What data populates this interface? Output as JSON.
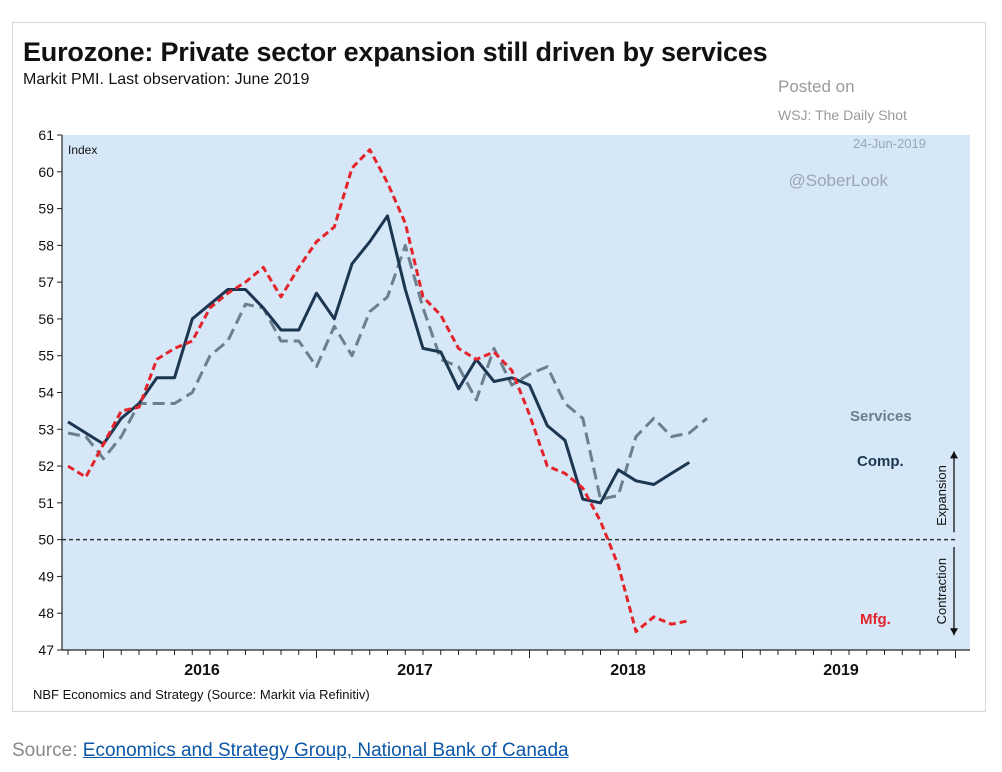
{
  "header_strip": {
    "visible": true
  },
  "chart_card": {
    "title": "Eurozone: Private sector expansion still driven by services",
    "subtitle": "Markit PMI. Last observation: June 2019",
    "watermark": {
      "posted_on": "Posted on",
      "source": "WSJ: The Daily Shot",
      "date": "24-Jun-2019",
      "handle": "@SoberLook"
    },
    "footnote": "NBF Economics and Strategy (Source: Markit via Refinitiv)"
  },
  "source": {
    "prefix": "Source: ",
    "link_text": "Economics and Strategy Group, National Bank of Canada"
  },
  "chart_data": {
    "type": "line",
    "title": "Eurozone: Private sector expansion still driven by services",
    "subtitle": "Markit PMI. Last observation: June 2019",
    "ylabel": "Index",
    "xlabel": "",
    "ylim": [
      47,
      61
    ],
    "yticks": [
      47,
      48,
      49,
      50,
      51,
      52,
      53,
      54,
      55,
      56,
      57,
      58,
      59,
      60,
      61
    ],
    "x_tick_labels": [
      "2016",
      "2017",
      "2018",
      "2019"
    ],
    "x": [
      "2015-11",
      "2015-12",
      "2016-01",
      "2016-02",
      "2016-03",
      "2016-04",
      "2016-05",
      "2016-06",
      "2016-07",
      "2016-08",
      "2016-09",
      "2016-10",
      "2016-11",
      "2016-12",
      "2017-01",
      "2017-02",
      "2017-03",
      "2017-04",
      "2017-05",
      "2017-06",
      "2017-07",
      "2017-08",
      "2017-09",
      "2017-10",
      "2017-11",
      "2017-12",
      "2018-01",
      "2018-02",
      "2018-03",
      "2018-04",
      "2018-05",
      "2018-06",
      "2018-07",
      "2018-08",
      "2018-09",
      "2018-10",
      "2018-11",
      "2018-12",
      "2019-01",
      "2019-02",
      "2019-03",
      "2019-04",
      "2019-05",
      "2019-06"
    ],
    "reference_line": {
      "value": 50,
      "style": "dashed"
    },
    "series": [
      {
        "name": "Services",
        "color": "#6b7f8f",
        "dash": "dashed",
        "values": [
          52.9,
          52.8,
          52.2,
          52.8,
          53.7,
          53.7,
          53.7,
          54.0,
          55.0,
          55.4,
          56.4,
          56.3,
          55.4,
          55.4,
          54.7,
          55.8,
          55.0,
          56.2,
          56.6,
          58.0,
          56.3,
          54.9,
          54.7,
          53.8,
          55.2,
          54.2,
          54.5,
          54.7,
          53.7,
          53.3,
          51.1,
          51.2,
          52.8,
          53.3,
          52.8,
          52.9,
          53.3,
          null,
          null,
          null,
          null,
          null,
          null,
          null
        ]
      },
      {
        "name": "Comp.",
        "color": "#1c3550",
        "dash": "solid",
        "values": [
          53.2,
          52.9,
          52.6,
          53.3,
          53.7,
          54.4,
          54.4,
          56.0,
          56.4,
          56.8,
          56.8,
          56.3,
          55.7,
          55.7,
          56.7,
          56.0,
          57.5,
          58.1,
          58.8,
          56.8,
          55.2,
          55.1,
          54.1,
          54.9,
          54.3,
          54.4,
          54.2,
          53.1,
          52.7,
          51.1,
          51.0,
          51.9,
          51.6,
          51.5,
          51.8,
          52.1,
          null,
          null,
          null,
          null,
          null,
          null,
          null,
          null
        ]
      },
      {
        "name": "Mfg.",
        "color": "#e3242b",
        "dash": "dashed",
        "values": [
          52.0,
          51.7,
          52.6,
          53.5,
          53.6,
          54.9,
          55.2,
          55.4,
          56.3,
          56.7,
          57.0,
          57.4,
          56.6,
          57.4,
          58.1,
          58.5,
          60.1,
          60.6,
          59.7,
          58.6,
          56.6,
          56.1,
          55.2,
          54.9,
          55.1,
          54.6,
          53.4,
          52.0,
          51.8,
          51.4,
          50.5,
          49.3,
          47.5,
          47.9,
          47.7,
          47.8,
          null,
          null,
          null,
          null,
          null,
          null,
          null,
          null
        ]
      }
    ],
    "annotations": [
      {
        "text": "Index"
      },
      {
        "text": "Expansion"
      },
      {
        "text": "Contraction"
      }
    ],
    "grid": false,
    "legend": "inline-labels"
  }
}
